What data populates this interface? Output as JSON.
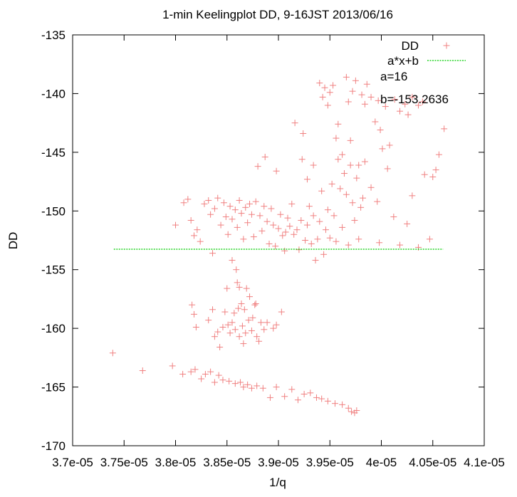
{
  "chart_data": {
    "type": "scatter",
    "title": "1-min Keelingplot DD, 9-16JST 2013/06/16",
    "xlabel": "1/q",
    "ylabel": "DD",
    "xlim": [
      3.7e-05,
      4.1e-05
    ],
    "ylim": [
      -170,
      -135
    ],
    "x_ticks": [
      {
        "value": 3.7e-05,
        "label": "3.7e-05"
      },
      {
        "value": 3.75e-05,
        "label": "3.75e-05"
      },
      {
        "value": 3.8e-05,
        "label": "3.8e-05"
      },
      {
        "value": 3.85e-05,
        "label": "3.85e-05"
      },
      {
        "value": 3.9e-05,
        "label": "3.9e-05"
      },
      {
        "value": 3.95e-05,
        "label": "3.95e-05"
      },
      {
        "value": 4e-05,
        "label": "4e-05"
      },
      {
        "value": 4.05e-05,
        "label": "4.05e-05"
      },
      {
        "value": 4.1e-05,
        "label": "4.1e-05"
      }
    ],
    "y_ticks": [
      {
        "value": -170,
        "label": "-170"
      },
      {
        "value": -165,
        "label": "-165"
      },
      {
        "value": -160,
        "label": "-160"
      },
      {
        "value": -155,
        "label": "-155"
      },
      {
        "value": -150,
        "label": "-150"
      },
      {
        "value": -145,
        "label": "-145"
      },
      {
        "value": -140,
        "label": "-140"
      },
      {
        "value": -135,
        "label": "-135"
      }
    ],
    "legend_position": "top-right",
    "annotations": [
      "a=16",
      "b=-153.2636"
    ],
    "colors": {
      "points": "#f08080",
      "fit": "#00cc00"
    },
    "series": [
      {
        "name": "DD",
        "style": "points",
        "points": [
          [
            3.739e-05,
            -162.1
          ],
          [
            3.768e-05,
            -163.6
          ],
          [
            3.797e-05,
            -163.2
          ],
          [
            3.807e-05,
            -163.9
          ],
          [
            3.815e-05,
            -163.7
          ],
          [
            3.819e-05,
            -163.5
          ],
          [
            3.825e-05,
            -164.3
          ],
          [
            3.829e-05,
            -163.9
          ],
          [
            3.834e-05,
            -163.7
          ],
          [
            3.838e-05,
            -164.6
          ],
          [
            3.842e-05,
            -164.0
          ],
          [
            3.846e-05,
            -164.4
          ],
          [
            3.852e-05,
            -164.5
          ],
          [
            3.858e-05,
            -164.7
          ],
          [
            3.863e-05,
            -164.6
          ],
          [
            3.866e-05,
            -165.0
          ],
          [
            3.87e-05,
            -164.8
          ],
          [
            3.874e-05,
            -165.1
          ],
          [
            3.879e-05,
            -164.9
          ],
          [
            3.885e-05,
            -165.1
          ],
          [
            3.892e-05,
            -165.9
          ],
          [
            3.898e-05,
            -165.0
          ],
          [
            3.906e-05,
            -165.8
          ],
          [
            3.913e-05,
            -165.2
          ],
          [
            3.919e-05,
            -166.1
          ],
          [
            3.925e-05,
            -165.6
          ],
          [
            3.931e-05,
            -165.5
          ],
          [
            3.937e-05,
            -165.9
          ],
          [
            3.942e-05,
            -166.0
          ],
          [
            3.948e-05,
            -166.2
          ],
          [
            3.955e-05,
            -166.4
          ],
          [
            3.962e-05,
            -166.5
          ],
          [
            3.968e-05,
            -166.8
          ],
          [
            3.971e-05,
            -167.1
          ],
          [
            3.974e-05,
            -167.2
          ],
          [
            3.976e-05,
            -167.0
          ],
          [
            3.816e-05,
            -158.0
          ],
          [
            3.818e-05,
            -158.8
          ],
          [
            3.82e-05,
            -159.9
          ],
          [
            3.832e-05,
            -159.3
          ],
          [
            3.836e-05,
            -158.4
          ],
          [
            3.838e-05,
            -160.7
          ],
          [
            3.841e-05,
            -160.3
          ],
          [
            3.843e-05,
            -161.6
          ],
          [
            3.846e-05,
            -159.9
          ],
          [
            3.848e-05,
            -158.6
          ],
          [
            3.85e-05,
            -156.6
          ],
          [
            3.851e-05,
            -159.7
          ],
          [
            3.853e-05,
            -160.4
          ],
          [
            3.855e-05,
            -159.5
          ],
          [
            3.857e-05,
            -158.7
          ],
          [
            3.858e-05,
            -160.1
          ],
          [
            3.86e-05,
            -156.1
          ],
          [
            3.861e-05,
            -158.3
          ],
          [
            3.862e-05,
            -160.7
          ],
          [
            3.864e-05,
            -157.9
          ],
          [
            3.865e-05,
            -159.8
          ],
          [
            3.866e-05,
            -161.3
          ],
          [
            3.867e-05,
            -158.4
          ],
          [
            3.868e-05,
            -160.4
          ],
          [
            3.869e-05,
            -156.6
          ],
          [
            3.871e-05,
            -159.3
          ],
          [
            3.872e-05,
            -157.3
          ],
          [
            3.874e-05,
            -160.2
          ],
          [
            3.875e-05,
            -159.1
          ],
          [
            3.877e-05,
            -158.0
          ],
          [
            3.879e-05,
            -160.7
          ],
          [
            3.881e-05,
            -161.1
          ],
          [
            3.883e-05,
            -159.5
          ],
          [
            3.886e-05,
            -160.1
          ],
          [
            3.889e-05,
            -159.5
          ],
          [
            3.895e-05,
            -160.0
          ],
          [
            3.898e-05,
            -159.7
          ],
          [
            3.903e-05,
            -158.6
          ],
          [
            3.855e-05,
            -154.2
          ],
          [
            3.859e-05,
            -155.0
          ],
          [
            3.862e-05,
            -156.5
          ],
          [
            3.878e-05,
            -157.9
          ],
          [
            3.8e-05,
            -151.2
          ],
          [
            3.808e-05,
            -149.3
          ],
          [
            3.812e-05,
            -149.0
          ],
          [
            3.815e-05,
            -150.8
          ],
          [
            3.818e-05,
            -152.1
          ],
          [
            3.821e-05,
            -151.6
          ],
          [
            3.824e-05,
            -152.6
          ],
          [
            3.828e-05,
            -149.4
          ],
          [
            3.832e-05,
            -149.1
          ],
          [
            3.834e-05,
            -150.3
          ],
          [
            3.836e-05,
            -153.6
          ],
          [
            3.838e-05,
            -149.8
          ],
          [
            3.841e-05,
            -148.9
          ],
          [
            3.844e-05,
            -151.2
          ],
          [
            3.847e-05,
            -149.3
          ],
          [
            3.849e-05,
            -150.5
          ],
          [
            3.851e-05,
            -152.0
          ],
          [
            3.853e-05,
            -149.6
          ],
          [
            3.855e-05,
            -150.7
          ],
          [
            3.858e-05,
            -149.9
          ],
          [
            3.86e-05,
            -151.4
          ],
          [
            3.862e-05,
            -149.1
          ],
          [
            3.864e-05,
            -150.2
          ],
          [
            3.866e-05,
            -152.4
          ],
          [
            3.868e-05,
            -149.7
          ],
          [
            3.87e-05,
            -151.0
          ],
          [
            3.872e-05,
            -149.4
          ],
          [
            3.874e-05,
            -150.3
          ],
          [
            3.876e-05,
            -152.2
          ],
          [
            3.878e-05,
            -149.2
          ],
          [
            3.88e-05,
            -146.2
          ],
          [
            3.882e-05,
            -150.4
          ],
          [
            3.884e-05,
            -151.7
          ],
          [
            3.886e-05,
            -149.6
          ],
          [
            3.887e-05,
            -145.4
          ],
          [
            3.889e-05,
            -150.9
          ],
          [
            3.891e-05,
            -152.8
          ],
          [
            3.893e-05,
            -149.8
          ],
          [
            3.895e-05,
            -151.2
          ],
          [
            3.897e-05,
            -153.0
          ],
          [
            3.898e-05,
            -146.6
          ],
          [
            3.9e-05,
            -151.5
          ],
          [
            3.902e-05,
            -150.3
          ],
          [
            3.904e-05,
            -152.1
          ],
          [
            3.906e-05,
            -153.4
          ],
          [
            3.907e-05,
            -151.8
          ],
          [
            3.909e-05,
            -150.6
          ],
          [
            3.911e-05,
            -151.3
          ],
          [
            3.913e-05,
            -149.4
          ],
          [
            3.915e-05,
            -152.0
          ],
          [
            3.916e-05,
            -142.5
          ],
          [
            3.918e-05,
            -151.6
          ],
          [
            3.92e-05,
            -153.3
          ],
          [
            3.922e-05,
            -150.8
          ],
          [
            3.924e-05,
            -143.4
          ],
          [
            3.926e-05,
            -152.5
          ],
          [
            3.928e-05,
            -151.2
          ],
          [
            3.93e-05,
            -149.6
          ],
          [
            3.932e-05,
            -152.8
          ],
          [
            3.934e-05,
            -150.4
          ],
          [
            3.936e-05,
            -154.2
          ],
          [
            3.938e-05,
            -152.4
          ],
          [
            3.94e-05,
            -150.9
          ],
          [
            3.942e-05,
            -148.3
          ],
          [
            3.944e-05,
            -153.7
          ],
          [
            3.946e-05,
            -151.6
          ],
          [
            3.948e-05,
            -149.9
          ],
          [
            3.95e-05,
            -152.3
          ],
          [
            3.952e-05,
            -147.7
          ],
          [
            3.954e-05,
            -150.4
          ],
          [
            3.956e-05,
            -152.6
          ],
          [
            3.958e-05,
            -145.6
          ],
          [
            3.96e-05,
            -148.1
          ],
          [
            3.962e-05,
            -151.4
          ],
          [
            3.964e-05,
            -146.8
          ],
          [
            3.966e-05,
            -148.6
          ],
          [
            3.968e-05,
            -152.9
          ],
          [
            3.97e-05,
            -146.1
          ],
          [
            3.972e-05,
            -149.3
          ],
          [
            3.974e-05,
            -150.8
          ],
          [
            3.976e-05,
            -147.2
          ],
          [
            3.978e-05,
            -152.4
          ],
          [
            3.98e-05,
            -149.7
          ],
          [
            3.982e-05,
            -148.9
          ],
          [
            3.984e-05,
            -145.8
          ],
          [
            3.99e-05,
            -148.0
          ],
          [
            3.996e-05,
            -149.2
          ],
          [
            3.998e-05,
            -152.7
          ],
          [
            4.001e-05,
            -144.7
          ],
          [
            4.006e-05,
            -146.4
          ],
          [
            4.012e-05,
            -150.5
          ],
          [
            4.018e-05,
            -152.9
          ],
          [
            4.025e-05,
            -151.1
          ],
          [
            4.03e-05,
            -148.7
          ],
          [
            4.036e-05,
            -153.1
          ],
          [
            4.042e-05,
            -146.9
          ],
          [
            4.047e-05,
            -152.4
          ],
          [
            4.05e-05,
            -147.1
          ],
          [
            4.053e-05,
            -146.5
          ],
          [
            4.056e-05,
            -145.2
          ],
          [
            3.923e-05,
            -145.6
          ],
          [
            3.928e-05,
            -147.3
          ],
          [
            3.934e-05,
            -146.1
          ],
          [
            3.94e-05,
            -139.1
          ],
          [
            3.943e-05,
            -140.3
          ],
          [
            3.945e-05,
            -139.5
          ],
          [
            3.948e-05,
            -141.0
          ],
          [
            3.95e-05,
            -139.9
          ],
          [
            3.953e-05,
            -139.3
          ],
          [
            3.956e-05,
            -143.8
          ],
          [
            3.958e-05,
            -142.6
          ],
          [
            3.962e-05,
            -145.2
          ],
          [
            3.966e-05,
            -138.6
          ],
          [
            3.968e-05,
            -140.7
          ],
          [
            3.97e-05,
            -144.0
          ],
          [
            3.972e-05,
            -139.8
          ],
          [
            3.975e-05,
            -138.9
          ],
          [
            3.978e-05,
            -146.1
          ],
          [
            3.981e-05,
            -140.1
          ],
          [
            3.984e-05,
            -140.9
          ],
          [
            3.986e-05,
            -139.2
          ],
          [
            3.99e-05,
            -140.3
          ],
          [
            3.994e-05,
            -142.4
          ],
          [
            3.997e-05,
            -140.6
          ],
          [
            3.999e-05,
            -143.1
          ],
          [
            4.004e-05,
            -141.1
          ],
          [
            4.008e-05,
            -144.4
          ],
          [
            4.013e-05,
            -140.5
          ],
          [
            4.018e-05,
            -141.5
          ],
          [
            4.023e-05,
            -140.9
          ],
          [
            4.026e-05,
            -141.8
          ],
          [
            4.03e-05,
            -140.3
          ],
          [
            4.036e-05,
            -141.0
          ],
          [
            4.04e-05,
            -140.7
          ],
          [
            4.061e-05,
            -143.0
          ]
        ]
      },
      {
        "name": "a*x+b",
        "style": "line",
        "points": [
          [
            3.74e-05,
            -153.26
          ],
          [
            4.06e-05,
            -153.26
          ]
        ]
      }
    ]
  }
}
